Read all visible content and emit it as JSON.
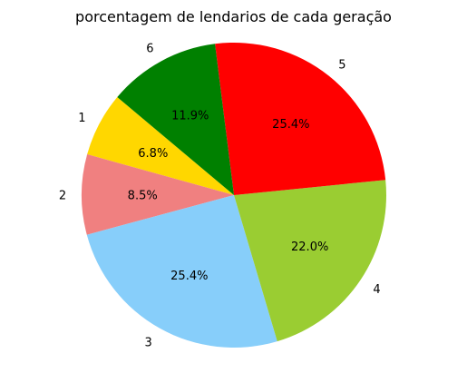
{
  "chart_data": {
    "type": "pie",
    "title": "porcentagem de lendarios de cada geração",
    "categories": [
      "1",
      "2",
      "3",
      "4",
      "5",
      "6"
    ],
    "values": [
      6.8,
      8.5,
      25.4,
      22.0,
      25.4,
      11.9
    ],
    "value_labels": [
      "6.8%",
      "8.5%",
      "25.4%",
      "22.0%",
      "25.4%",
      "11.9%"
    ],
    "colors": [
      "#ffd700",
      "#f08080",
      "#87cefa",
      "#9acd32",
      "#ff0000",
      "#008000"
    ],
    "start_angle_deg": 140,
    "direction": "counterclockwise",
    "legend": "none"
  }
}
